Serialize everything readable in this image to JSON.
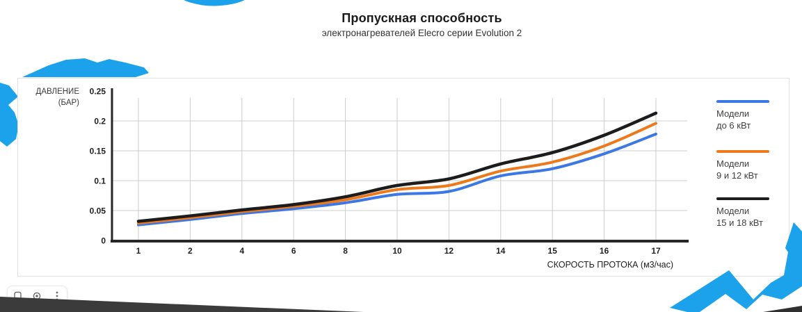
{
  "title": "Пропускная способность",
  "subtitle": "электронагревателей Elecro серии Evolution 2",
  "chart_data": {
    "type": "line",
    "title": "Пропускная способность",
    "subtitle": "электронагревателей Elecro серии Evolution 2",
    "xlabel": "СКОРОСТЬ ПРОТОКА (м3/час)",
    "ylabel": "ДАВЛЕНИЕ (БАР)",
    "ylabel_line1": "ДАВЛЕНИЕ",
    "ylabel_line2": "(БАР)",
    "categories": [
      "1",
      "2",
      "4",
      "6",
      "8",
      "10",
      "12",
      "14",
      "15",
      "16",
      "17"
    ],
    "y_ticks": [
      0,
      0.05,
      0.1,
      0.15,
      0.2,
      0.25
    ],
    "ylim": [
      0,
      0.25
    ],
    "grid": true,
    "legend_position": "right",
    "series": [
      {
        "name": "Модели до 6 кВт",
        "label_line1": "Модели",
        "label_line2": "до 6 кВт",
        "color": "#3b78e5",
        "values": [
          0.026,
          0.035,
          0.045,
          0.053,
          0.063,
          0.077,
          0.082,
          0.108,
          0.12,
          0.145,
          0.178
        ]
      },
      {
        "name": "Модели 9 и 12 кВт",
        "label_line1": "Модели",
        "label_line2": "9 и 12 кВт",
        "color": "#ec7a1c",
        "values": [
          0.029,
          0.038,
          0.048,
          0.057,
          0.068,
          0.085,
          0.092,
          0.116,
          0.131,
          0.158,
          0.196
        ]
      },
      {
        "name": "Модели 15 и 18 кВт",
        "label_line1": "Модели",
        "label_line2": "15 и 18 кВт",
        "color": "#1c1c1c",
        "values": [
          0.032,
          0.041,
          0.051,
          0.06,
          0.073,
          0.092,
          0.103,
          0.128,
          0.147,
          0.176,
          0.213
        ]
      }
    ]
  },
  "toolbar": {
    "buttons": [
      {
        "icon": "bookmark-icon"
      },
      {
        "icon": "lens-icon"
      },
      {
        "icon": "more-options-icon"
      }
    ]
  },
  "colors": {
    "decor_blue": "#1ba2ea",
    "wedge_dark_left": "#3b3b3b",
    "wedge_dark_right": "#303030",
    "gridline": "#cccccc",
    "axis": "#262626",
    "tick_text": "#222222"
  }
}
